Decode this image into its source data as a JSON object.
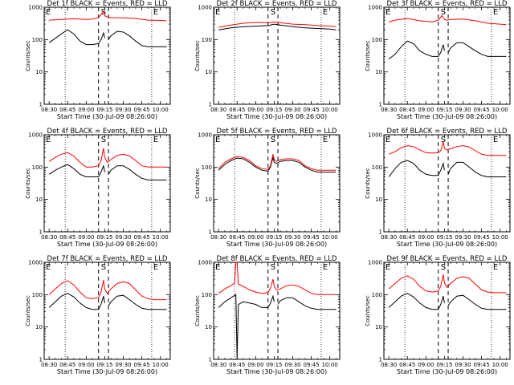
{
  "figure": {
    "yticklabels": [
      "1",
      "10",
      "100",
      "1000"
    ],
    "xticklabels": [
      "08:30",
      "08:45",
      "09:00",
      "09:15",
      "09:30",
      "09:45",
      "10:00"
    ],
    "xlabel": "Start Time (30-Jul-09 08:26:00)",
    "ylabel": "Counts/sec",
    "markers": [
      "E",
      "S",
      "E"
    ],
    "colors": {
      "events": "#000000",
      "lld": "#ff0000",
      "background": "#ffffff"
    }
  },
  "chart_data": [
    {
      "type": "line",
      "title": "Det 1f BLACK = Events, RED = LLD",
      "ylog": true,
      "ylim": [
        1,
        1000
      ],
      "series": [
        {
          "key": "events",
          "color": "#000000",
          "x": [
            "08:30",
            "08:35",
            "08:40",
            "08:45",
            "08:50",
            "08:55",
            "09:00",
            "09:05",
            "09:10",
            "09:12",
            "09:14",
            "09:15",
            "09:16",
            "09:18",
            "09:20",
            "09:25",
            "09:30",
            "09:35",
            "09:40",
            "09:45",
            "09:50",
            "09:55",
            "10:00",
            "10:05"
          ],
          "y": [
            80,
            110,
            150,
            200,
            150,
            90,
            70,
            70,
            75,
            100,
            160,
            110,
            0,
            100,
            130,
            180,
            170,
            130,
            90,
            65,
            60,
            60,
            60,
            60
          ]
        },
        {
          "key": "lld",
          "color": "#ff0000",
          "x": [
            "08:30",
            "08:40",
            "08:50",
            "09:00",
            "09:05",
            "09:10",
            "09:12",
            "09:14",
            "09:15",
            "09:17",
            "09:20",
            "09:30",
            "09:40",
            "09:50",
            "10:00",
            "10:05"
          ],
          "y": [
            400,
            420,
            440,
            420,
            430,
            480,
            600,
            750,
            550,
            500,
            480,
            470,
            450,
            400,
            390,
            380
          ]
        }
      ]
    },
    {
      "type": "line",
      "title": "Det 2f BLACK = Events, RED = LLD",
      "ylog": true,
      "ylim": [
        1,
        1000
      ],
      "series": [
        {
          "key": "events",
          "color": "#000000",
          "x": [
            "08:30",
            "08:40",
            "08:50",
            "09:00",
            "09:10",
            "09:15",
            "09:20",
            "09:30",
            "09:40",
            "09:50",
            "10:00",
            "10:05"
          ],
          "y": [
            200,
            230,
            250,
            260,
            270,
            300,
            280,
            250,
            230,
            220,
            210,
            200
          ]
        },
        {
          "key": "lld",
          "color": "#ff0000",
          "x": [
            "08:30",
            "08:40",
            "08:50",
            "09:00",
            "09:10",
            "09:15",
            "09:20",
            "09:30",
            "09:40",
            "09:50",
            "10:00",
            "10:05"
          ],
          "y": [
            240,
            280,
            320,
            340,
            330,
            350,
            330,
            300,
            290,
            270,
            260,
            250
          ]
        }
      ]
    },
    {
      "type": "line",
      "title": "Det 3f BLACK = Events, RED = LLD",
      "ylog": true,
      "ylim": [
        1,
        1000
      ],
      "series": [
        {
          "key": "events",
          "color": "#000000",
          "x": [
            "08:30",
            "08:35",
            "08:40",
            "08:45",
            "08:50",
            "08:55",
            "09:00",
            "09:05",
            "09:10",
            "09:12",
            "09:14",
            "09:15",
            "09:16",
            "09:18",
            "09:20",
            "09:25",
            "09:30",
            "09:35",
            "09:40",
            "09:45",
            "09:50",
            "09:55",
            "10:00",
            "10:05"
          ],
          "y": [
            25,
            35,
            60,
            90,
            75,
            45,
            35,
            30,
            30,
            40,
            70,
            45,
            0,
            40,
            55,
            80,
            80,
            60,
            45,
            35,
            30,
            30,
            30,
            30
          ]
        },
        {
          "key": "lld",
          "color": "#ff0000",
          "x": [
            "08:30",
            "08:35",
            "08:45",
            "08:55",
            "09:05",
            "09:10",
            "09:13",
            "09:15",
            "09:17",
            "09:20",
            "09:30",
            "09:40",
            "09:50",
            "10:00",
            "10:05"
          ],
          "y": [
            350,
            400,
            450,
            380,
            350,
            400,
            550,
            420,
            400,
            420,
            430,
            380,
            320,
            300,
            290
          ]
        }
      ]
    },
    {
      "type": "line",
      "title": "Det 4f BLACK = Events, RED = LLD",
      "ylog": true,
      "ylim": [
        1,
        1000
      ],
      "series": [
        {
          "key": "events",
          "color": "#000000",
          "x": [
            "08:30",
            "08:35",
            "08:40",
            "08:45",
            "08:50",
            "08:55",
            "09:00",
            "09:05",
            "09:10",
            "09:12",
            "09:14",
            "09:15",
            "09:16",
            "09:18",
            "09:20",
            "09:25",
            "09:30",
            "09:35",
            "09:40",
            "09:45",
            "09:50",
            "09:55",
            "10:00",
            "10:05"
          ],
          "y": [
            60,
            80,
            100,
            120,
            90,
            60,
            50,
            50,
            50,
            70,
            110,
            70,
            0,
            60,
            80,
            110,
            110,
            85,
            60,
            45,
            40,
            40,
            40,
            40
          ]
        },
        {
          "key": "lld",
          "color": "#ff0000",
          "x": [
            "08:30",
            "08:35",
            "08:40",
            "08:45",
            "08:50",
            "08:55",
            "09:00",
            "09:05",
            "09:10",
            "09:12",
            "09:14",
            "09:15",
            "09:17",
            "09:20",
            "09:25",
            "09:30",
            "09:35",
            "09:40",
            "09:45",
            "09:50",
            "09:55",
            "10:00",
            "10:05"
          ],
          "y": [
            150,
            200,
            250,
            280,
            220,
            140,
            100,
            100,
            110,
            160,
            380,
            200,
            140,
            170,
            230,
            250,
            220,
            160,
            110,
            100,
            100,
            100,
            100
          ]
        }
      ]
    },
    {
      "type": "line",
      "title": "Det 5f BLACK = Events, RED = LLD",
      "ylog": true,
      "ylim": [
        1,
        1000
      ],
      "series": [
        {
          "key": "events",
          "color": "#000000",
          "x": [
            "08:30",
            "08:35",
            "08:40",
            "08:45",
            "08:50",
            "08:55",
            "09:00",
            "09:05",
            "09:10",
            "09:12",
            "09:14",
            "09:15",
            "09:17",
            "09:20",
            "09:25",
            "09:30",
            "09:35",
            "09:40",
            "09:45",
            "09:50",
            "09:55",
            "10:00",
            "10:05"
          ],
          "y": [
            80,
            120,
            160,
            190,
            180,
            140,
            100,
            80,
            75,
            100,
            200,
            140,
            130,
            150,
            160,
            160,
            140,
            100,
            80,
            70,
            70,
            70,
            70
          ]
        },
        {
          "key": "lld",
          "color": "#ff0000",
          "x": [
            "08:30",
            "08:35",
            "08:40",
            "08:45",
            "08:50",
            "08:55",
            "09:00",
            "09:05",
            "09:10",
            "09:12",
            "09:14",
            "09:15",
            "09:17",
            "09:20",
            "09:25",
            "09:30",
            "09:35",
            "09:40",
            "09:45",
            "09:50",
            "09:55",
            "10:00",
            "10:05"
          ],
          "y": [
            90,
            140,
            180,
            210,
            200,
            160,
            110,
            90,
            85,
            110,
            250,
            170,
            150,
            170,
            180,
            180,
            160,
            110,
            90,
            80,
            80,
            80,
            80
          ]
        }
      ]
    },
    {
      "type": "line",
      "title": "Det 6f BLACK = Events, RED = LLD",
      "ylog": true,
      "ylim": [
        1,
        1000
      ],
      "series": [
        {
          "key": "events",
          "color": "#000000",
          "x": [
            "08:30",
            "08:35",
            "08:40",
            "08:45",
            "08:50",
            "08:55",
            "09:00",
            "09:05",
            "09:10",
            "09:12",
            "09:14",
            "09:15",
            "09:16",
            "09:18",
            "09:20",
            "09:25",
            "09:30",
            "09:35",
            "09:40",
            "09:45",
            "09:50",
            "09:55",
            "10:00",
            "10:05"
          ],
          "y": [
            50,
            90,
            140,
            160,
            130,
            80,
            60,
            55,
            55,
            80,
            130,
            80,
            0,
            60,
            90,
            140,
            140,
            100,
            70,
            55,
            50,
            50,
            50,
            50
          ]
        },
        {
          "key": "lld",
          "color": "#ff0000",
          "x": [
            "08:30",
            "08:35",
            "08:40",
            "08:45",
            "08:50",
            "08:55",
            "09:00",
            "09:05",
            "09:10",
            "09:12",
            "09:14",
            "09:15",
            "09:17",
            "09:20",
            "09:25",
            "09:30",
            "09:35",
            "09:40",
            "09:45",
            "09:50",
            "09:55",
            "10:00",
            "10:05"
          ],
          "y": [
            250,
            300,
            400,
            460,
            430,
            340,
            280,
            270,
            280,
            320,
            600,
            380,
            340,
            370,
            430,
            460,
            420,
            320,
            250,
            230,
            230,
            230,
            230
          ]
        }
      ]
    },
    {
      "type": "line",
      "title": "Det 7f BLACK = Events, RED = LLD",
      "ylog": true,
      "ylim": [
        1,
        1000
      ],
      "series": [
        {
          "key": "events",
          "color": "#000000",
          "x": [
            "08:30",
            "08:35",
            "08:40",
            "08:45",
            "08:50",
            "08:55",
            "09:00",
            "09:05",
            "09:10",
            "09:12",
            "09:14",
            "09:15",
            "09:16",
            "09:18",
            "09:20",
            "09:25",
            "09:30",
            "09:35",
            "09:40",
            "09:45",
            "09:50",
            "09:55",
            "10:00",
            "10:05"
          ],
          "y": [
            40,
            60,
            90,
            110,
            85,
            55,
            40,
            35,
            35,
            50,
            90,
            55,
            0,
            45,
            60,
            90,
            95,
            70,
            50,
            38,
            35,
            35,
            35,
            35
          ]
        },
        {
          "key": "lld",
          "color": "#ff0000",
          "x": [
            "08:30",
            "08:35",
            "08:40",
            "08:45",
            "08:50",
            "08:55",
            "09:00",
            "09:05",
            "09:10",
            "09:12",
            "09:14",
            "09:15",
            "09:17",
            "09:20",
            "09:25",
            "09:30",
            "09:35",
            "09:40",
            "09:45",
            "09:50",
            "09:55",
            "10:00",
            "10:05"
          ],
          "y": [
            100,
            150,
            220,
            270,
            200,
            120,
            80,
            75,
            80,
            120,
            280,
            150,
            110,
            150,
            220,
            250,
            220,
            140,
            90,
            75,
            70,
            70,
            70
          ]
        }
      ]
    },
    {
      "type": "line",
      "title": "Det 8f BLACK = Events, RED = LLD",
      "ylog": true,
      "ylim": [
        1,
        1000
      ],
      "series": [
        {
          "key": "events",
          "color": "#000000",
          "x": [
            "08:30",
            "08:35",
            "08:40",
            "08:44",
            "08:45",
            "08:46",
            "08:50",
            "08:55",
            "09:00",
            "09:05",
            "09:10",
            "09:12",
            "09:14",
            "09:15",
            "09:16",
            "09:18",
            "09:20",
            "09:25",
            "09:30",
            "09:35",
            "09:40",
            "09:45",
            "09:50",
            "09:55",
            "10:00",
            "10:05"
          ],
          "y": [
            40,
            60,
            80,
            100,
            1,
            50,
            60,
            55,
            50,
            40,
            40,
            55,
            90,
            60,
            0,
            50,
            65,
            80,
            80,
            60,
            45,
            38,
            35,
            35,
            35,
            35
          ]
        },
        {
          "key": "lld",
          "color": "#ff0000",
          "x": [
            "08:30",
            "08:35",
            "08:40",
            "08:43",
            "08:44",
            "08:45",
            "08:46",
            "08:50",
            "08:55",
            "09:00",
            "09:05",
            "09:10",
            "09:12",
            "09:14",
            "09:15",
            "09:17",
            "09:20",
            "09:25",
            "09:30",
            "09:35",
            "09:40",
            "09:45",
            "09:50",
            "09:55",
            "10:00",
            "10:05"
          ],
          "y": [
            110,
            150,
            190,
            230,
            1000,
            1000,
            210,
            180,
            140,
            120,
            110,
            115,
            160,
            300,
            180,
            140,
            150,
            190,
            200,
            180,
            140,
            110,
            100,
            100,
            100,
            100
          ]
        }
      ]
    },
    {
      "type": "line",
      "title": "Det 9f BLACK = Events, RED = LLD",
      "ylog": true,
      "ylim": [
        1,
        1000
      ],
      "series": [
        {
          "key": "events",
          "color": "#000000",
          "x": [
            "08:30",
            "08:35",
            "08:40",
            "08:45",
            "08:50",
            "08:55",
            "09:00",
            "09:05",
            "09:10",
            "09:12",
            "09:14",
            "09:15",
            "09:16",
            "09:18",
            "09:20",
            "09:25",
            "09:30",
            "09:35",
            "09:40",
            "09:45",
            "09:50",
            "09:55",
            "10:00",
            "10:05"
          ],
          "y": [
            40,
            60,
            90,
            110,
            85,
            55,
            40,
            35,
            35,
            50,
            90,
            55,
            0,
            45,
            60,
            90,
            95,
            70,
            50,
            38,
            35,
            35,
            35,
            35
          ]
        },
        {
          "key": "lld",
          "color": "#ff0000",
          "x": [
            "08:30",
            "08:35",
            "08:40",
            "08:45",
            "08:50",
            "08:55",
            "09:00",
            "09:05",
            "09:10",
            "09:12",
            "09:14",
            "09:15",
            "09:17",
            "09:20",
            "09:25",
            "09:30",
            "09:35",
            "09:40",
            "09:45",
            "09:50",
            "09:55",
            "10:00",
            "10:05"
          ],
          "y": [
            150,
            220,
            320,
            380,
            300,
            180,
            130,
            120,
            130,
            180,
            420,
            230,
            170,
            220,
            320,
            360,
            320,
            210,
            140,
            120,
            115,
            115,
            115
          ]
        }
      ]
    }
  ]
}
